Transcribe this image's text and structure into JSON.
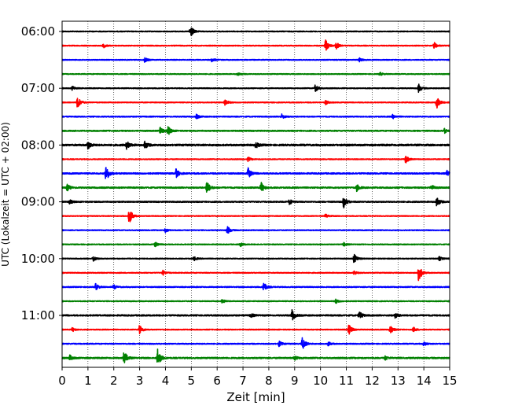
{
  "chart_data": {
    "type": "line",
    "title": "",
    "xlabel": "Zeit  [min]",
    "ylabel": "UTC (Lokalzeit = UTC + 02:00)",
    "xlim": [
      0,
      15
    ],
    "x_ticks": [
      "0",
      "1",
      "2",
      "3",
      "4",
      "5",
      "6",
      "7",
      "8",
      "9",
      "10",
      "11",
      "12",
      "13",
      "14",
      "15"
    ],
    "y_tick_labels": [
      "06:00",
      "07:00",
      "08:00",
      "09:00",
      "10:00",
      "11:00"
    ],
    "grid": "vertical dotted lines at each minute",
    "trace_interval_minutes": 15,
    "color_cycle": [
      "#000000",
      "#ff0000",
      "#0000ff",
      "#008000"
    ],
    "series": [
      {
        "start": "06:00",
        "color": "#000000",
        "baseline": 1.0,
        "events": [
          [
            5.0,
            0.4
          ],
          [
            4.95,
            0.5
          ]
        ]
      },
      {
        "start": "06:15",
        "color": "#ff0000",
        "baseline": 1.0,
        "events": [
          [
            10.2,
            0.9
          ],
          [
            10.6,
            0.6
          ],
          [
            14.4,
            0.5
          ],
          [
            1.6,
            0.3
          ]
        ]
      },
      {
        "start": "06:30",
        "color": "#0000ff",
        "baseline": 1.0,
        "events": [
          [
            3.2,
            0.35
          ],
          [
            5.8,
            0.3
          ],
          [
            11.5,
            0.3
          ]
        ]
      },
      {
        "start": "06:45",
        "color": "#008000",
        "baseline": 1.0,
        "events": [
          [
            6.8,
            0.25
          ],
          [
            12.3,
            0.25
          ]
        ]
      },
      {
        "start": "07:00",
        "color": "#000000",
        "baseline": 1.0,
        "events": [
          [
            9.8,
            0.6
          ],
          [
            13.8,
            0.6
          ],
          [
            0.4,
            0.3
          ]
        ]
      },
      {
        "start": "07:15",
        "color": "#ff0000",
        "baseline": 1.0,
        "events": [
          [
            0.6,
            1.0
          ],
          [
            6.3,
            0.5
          ],
          [
            14.5,
            1.0
          ],
          [
            10.2,
            0.3
          ]
        ]
      },
      {
        "start": "07:30",
        "color": "#0000ff",
        "baseline": 1.2,
        "events": [
          [
            5.2,
            0.3
          ],
          [
            8.5,
            0.35
          ],
          [
            12.8,
            0.3
          ]
        ]
      },
      {
        "start": "07:45",
        "color": "#008000",
        "baseline": 1.4,
        "events": [
          [
            4.1,
            0.7
          ],
          [
            3.8,
            0.5
          ],
          [
            14.8,
            0.35
          ]
        ]
      },
      {
        "start": "08:00",
        "color": "#000000",
        "baseline": 2.0,
        "events": [
          [
            1.0,
            0.6
          ],
          [
            2.5,
            0.6
          ],
          [
            3.2,
            0.6
          ],
          [
            7.5,
            0.4
          ]
        ]
      },
      {
        "start": "08:15",
        "color": "#ff0000",
        "baseline": 1.0,
        "events": [
          [
            13.3,
            0.6
          ],
          [
            7.2,
            0.3
          ]
        ]
      },
      {
        "start": "08:30",
        "color": "#0000ff",
        "baseline": 1.6,
        "events": [
          [
            1.7,
            1.3
          ],
          [
            4.4,
            0.7
          ],
          [
            7.2,
            0.8
          ],
          [
            14.9,
            0.4
          ]
        ]
      },
      {
        "start": "08:45",
        "color": "#008000",
        "baseline": 1.6,
        "events": [
          [
            0.2,
            0.5
          ],
          [
            5.6,
            1.0
          ],
          [
            7.7,
            0.8
          ],
          [
            11.4,
            0.5
          ],
          [
            14.3,
            0.4
          ]
        ]
      },
      {
        "start": "09:00",
        "color": "#000000",
        "baseline": 1.4,
        "events": [
          [
            10.9,
            0.9
          ],
          [
            14.5,
            0.8
          ],
          [
            8.8,
            0.4
          ],
          [
            0.3,
            0.3
          ]
        ]
      },
      {
        "start": "09:15",
        "color": "#ff0000",
        "baseline": 1.0,
        "events": [
          [
            2.6,
            1.3
          ],
          [
            10.2,
            0.3
          ]
        ]
      },
      {
        "start": "09:30",
        "color": "#0000ff",
        "baseline": 1.0,
        "events": [
          [
            6.4,
            0.6
          ],
          [
            4.0,
            0.3
          ]
        ]
      },
      {
        "start": "09:45",
        "color": "#008000",
        "baseline": 1.0,
        "events": [
          [
            3.6,
            0.35
          ],
          [
            6.9,
            0.3
          ],
          [
            10.9,
            0.25
          ]
        ]
      },
      {
        "start": "10:00",
        "color": "#000000",
        "baseline": 1.0,
        "events": [
          [
            11.3,
            0.7
          ],
          [
            1.2,
            0.4
          ],
          [
            5.1,
            0.3
          ],
          [
            14.6,
            0.3
          ]
        ]
      },
      {
        "start": "10:15",
        "color": "#ff0000",
        "baseline": 1.0,
        "events": [
          [
            13.8,
            1.4
          ],
          [
            3.9,
            0.35
          ],
          [
            11.3,
            0.3
          ]
        ]
      },
      {
        "start": "10:30",
        "color": "#0000ff",
        "baseline": 1.2,
        "events": [
          [
            1.3,
            0.5
          ],
          [
            7.8,
            0.8
          ],
          [
            2.0,
            0.3
          ]
        ]
      },
      {
        "start": "10:45",
        "color": "#008000",
        "baseline": 1.0,
        "events": [
          [
            10.6,
            0.35
          ],
          [
            6.2,
            0.3
          ]
        ]
      },
      {
        "start": "11:00",
        "color": "#000000",
        "baseline": 1.6,
        "events": [
          [
            8.9,
            0.8
          ],
          [
            11.5,
            0.6
          ],
          [
            12.9,
            0.4
          ],
          [
            7.3,
            0.3
          ]
        ]
      },
      {
        "start": "11:15",
        "color": "#ff0000",
        "baseline": 1.0,
        "events": [
          [
            3.0,
            0.7
          ],
          [
            11.1,
            0.8
          ],
          [
            12.7,
            0.6
          ],
          [
            0.4,
            0.3
          ],
          [
            13.6,
            0.35
          ]
        ]
      },
      {
        "start": "11:30",
        "color": "#0000ff",
        "baseline": 1.2,
        "events": [
          [
            9.3,
            1.0
          ],
          [
            8.4,
            0.4
          ],
          [
            10.3,
            0.3
          ],
          [
            14.0,
            0.3
          ]
        ]
      },
      {
        "start": "11:45",
        "color": "#008000",
        "baseline": 1.6,
        "events": [
          [
            2.4,
            1.1
          ],
          [
            3.7,
            1.4
          ],
          [
            0.3,
            0.4
          ],
          [
            9.0,
            0.3
          ],
          [
            12.5,
            0.3
          ]
        ]
      }
    ]
  }
}
